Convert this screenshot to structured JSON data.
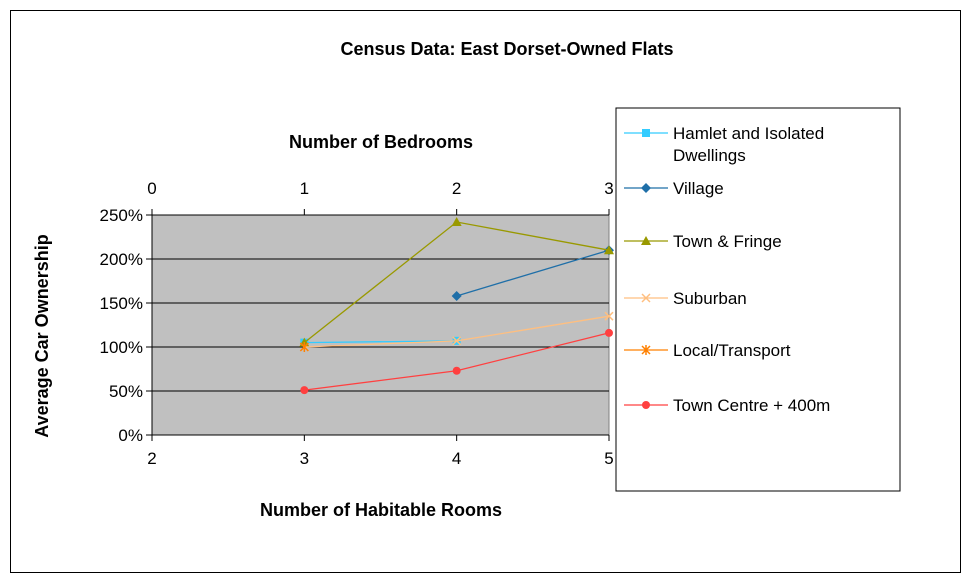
{
  "chart_data": {
    "type": "line",
    "title": "Census Data: East Dorset-Owned Flats",
    "ylabel": "Average Car Ownership",
    "xlabel": "Number of Habitable Rooms",
    "x2label": "Number of Bedrooms",
    "x_ticks": [
      "2",
      "3",
      "4",
      "5"
    ],
    "x2_ticks": [
      "0",
      "1",
      "2",
      "3"
    ],
    "y_ticks": [
      "0%",
      "50%",
      "100%",
      "150%",
      "200%",
      "250%"
    ],
    "xlim": [
      2,
      5
    ],
    "ylim": [
      0,
      250
    ],
    "grid": true,
    "legend_position": "right",
    "series": [
      {
        "name": "Hamlet and Isolated Dwellings",
        "color": "#33CCFF",
        "marker": "square",
        "x": [
          3,
          4
        ],
        "y": [
          105,
          107
        ]
      },
      {
        "name": "Village",
        "color": "#1F6FA8",
        "marker": "diamond",
        "x": [
          4,
          5
        ],
        "y": [
          158,
          210
        ]
      },
      {
        "name": "Town & Fringe",
        "color": "#999900",
        "marker": "triangle",
        "x": [
          3,
          4,
          5
        ],
        "y": [
          105,
          242,
          210
        ]
      },
      {
        "name": "Suburban",
        "color": "#FFBF80",
        "marker": "x",
        "x": [
          3,
          4,
          5
        ],
        "y": [
          100,
          107,
          135
        ]
      },
      {
        "name": "Local/Transport",
        "color": "#FF8000",
        "marker": "star",
        "x": [
          3
        ],
        "y": [
          100
        ]
      },
      {
        "name": "Town Centre + 400m",
        "color": "#FF4040",
        "marker": "circle",
        "x": [
          3,
          4,
          5
        ],
        "y": [
          51,
          73,
          116
        ]
      }
    ]
  }
}
